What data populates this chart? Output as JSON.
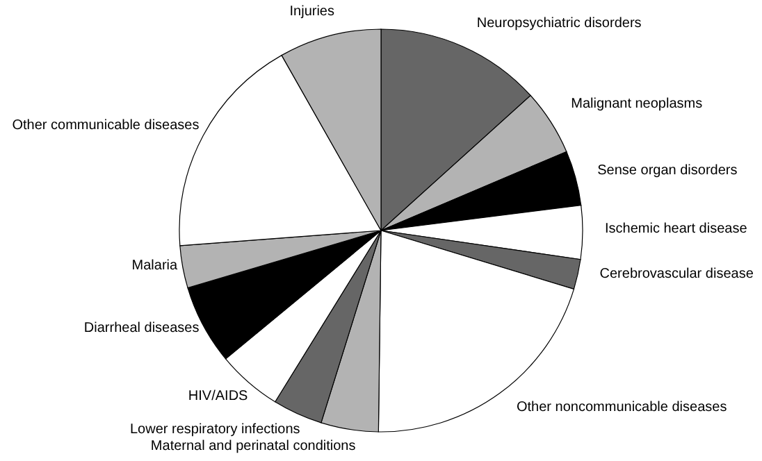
{
  "chart_data": {
    "type": "pie",
    "categories": [
      "Neuropsychiatric disorders",
      "Malignant neoplasms",
      "Sense organ disorders",
      "Ischemic heart disease",
      "Cerebrovascular disease",
      "Other noncommunicable diseases",
      "Maternal and perinatal conditions",
      "Lower respiratory infections",
      "HIV/AIDS",
      "Diarrheal diseases",
      "Malaria",
      "Other communicable diseases",
      "Injuries"
    ],
    "values": [
      13.3,
      5.3,
      4.4,
      4.3,
      2.4,
      20.5,
      4.6,
      4.0,
      5.2,
      6.4,
      3.4,
      18.0,
      8.2
    ],
    "colors": [
      "#666666",
      "#b3b3b3",
      "#000000",
      "#ffffff",
      "#666666",
      "#ffffff",
      "#b3b3b3",
      "#666666",
      "#ffffff",
      "#000000",
      "#b3b3b3",
      "#ffffff",
      "#b3b3b3"
    ]
  }
}
